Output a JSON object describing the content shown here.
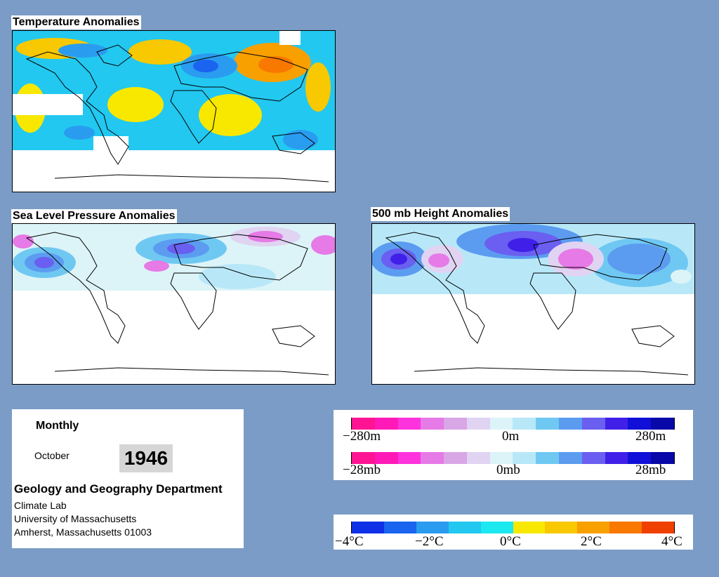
{
  "maps": {
    "temperature": {
      "title": "Temperature Anomalies"
    },
    "slp": {
      "title": "Sea Level Pressure Anomalies"
    },
    "height500": {
      "title": "500 mb Height Anomalies"
    }
  },
  "info": {
    "period": "Monthly",
    "month": "October",
    "year": "1946",
    "department": "Geology and Geography Department",
    "lab": "Climate Lab",
    "university": "University of Massachusetts",
    "address": "Amherst, Massachusetts 01003"
  },
  "legends": {
    "pressure_colors": [
      "#ff1493",
      "#ff1ab8",
      "#ff33dd",
      "#e67ae6",
      "#d9a6e6",
      "#e0d4f2",
      "#dcf4f8",
      "#b8e8f8",
      "#6fc8f2",
      "#5b9cf0",
      "#6a5ff0",
      "#4020e8",
      "#1010d8",
      "#0808a8"
    ],
    "height_scale": {
      "min": "−280m",
      "mid": "0m",
      "max": "280m"
    },
    "slp_scale": {
      "min": "−28mb",
      "mid": "0mb",
      "max": "28mb"
    },
    "temp_colors": [
      "#1030e8",
      "#1a64f0",
      "#2a9cf0",
      "#22c8f0",
      "#1ce8f0",
      "#f8e800",
      "#f8c800",
      "#f8a000",
      "#f87800",
      "#f04000"
    ],
    "temp_scale": {
      "t0": "−4°C",
      "t1": "−2°C",
      "t2": "0°C",
      "t3": "2°C",
      "t4": "4°C"
    }
  }
}
